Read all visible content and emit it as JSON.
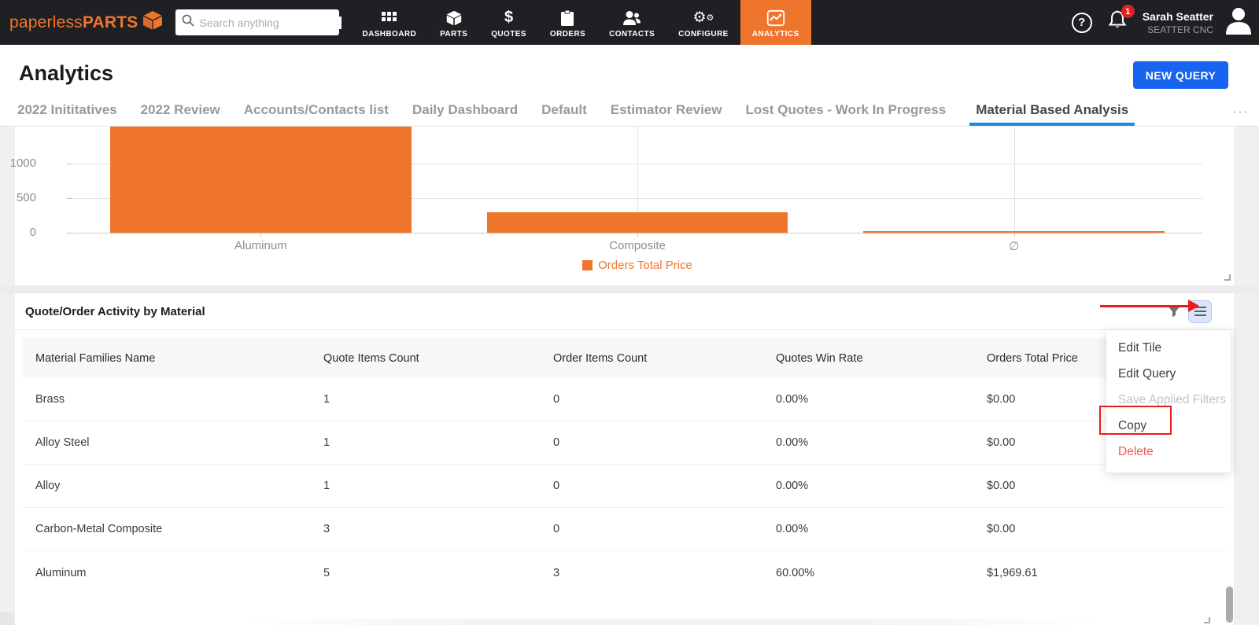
{
  "colors": {
    "orange": "#F0752C",
    "blue": "#1664F0",
    "tab_underline_blue": "#1E88E5",
    "annotation_red": "#E81C1C",
    "danger_red": "#F25A4F",
    "nav_background": "#1F2023"
  },
  "topnav": {
    "logo": {
      "text_regular": "paperless",
      "text_bold": "PARTS"
    },
    "search": {
      "placeholder": "Search anything"
    },
    "items": [
      {
        "label": "DASHBOARD",
        "icon": "grid-icon",
        "active": false
      },
      {
        "label": "PARTS",
        "icon": "cube-icon",
        "active": false
      },
      {
        "label": "QUOTES",
        "icon": "dollar-icon",
        "active": false
      },
      {
        "label": "ORDERS",
        "icon": "clipboard-icon",
        "active": false
      },
      {
        "label": "CONTACTS",
        "icon": "people-icon",
        "active": false
      },
      {
        "label": "CONFIGURE",
        "icon": "gears-icon",
        "active": false
      },
      {
        "label": "ANALYTICS",
        "icon": "chart-icon",
        "active": true
      }
    ],
    "notification_count": "1",
    "user": {
      "name": "Sarah Seatter",
      "company": "SEATTER CNC"
    }
  },
  "header": {
    "title": "Analytics",
    "new_query_label": "NEW QUERY"
  },
  "tabs": {
    "items": [
      "2022 Inititatives",
      "2022 Review",
      "Accounts/Contacts list",
      "Daily Dashboard",
      "Default",
      "Estimator Review",
      "Lost Quotes - Work In Progress",
      "Material Based Analysis"
    ],
    "active_index": 7,
    "overflow": "···"
  },
  "chart_data": {
    "type": "bar",
    "title": "",
    "xlabel": "",
    "ylabel": "",
    "categories": [
      "Aluminum",
      "Composite",
      "∅"
    ],
    "values": [
      1969.61,
      290,
      3
    ],
    "series_name": "Orders Total Price",
    "legend": [
      "Orders Total Price"
    ],
    "legend_position": "bottom-center",
    "yticks": [
      0,
      500,
      1000
    ],
    "ylim_visible": [
      0,
      1540
    ],
    "grid": true,
    "note": "top of Aluminum bar clipped out of view"
  },
  "table_card": {
    "title": "Quote/Order Activity by Material",
    "columns": [
      "Material Families Name",
      "Quote Items Count",
      "Order Items Count",
      "Quotes Win Rate",
      "Orders Total Price"
    ],
    "rows": [
      {
        "name": "Brass",
        "quote_items_count": "1",
        "order_items_count": "0",
        "quotes_win_rate": "0.00%",
        "orders_total_price": "$0.00"
      },
      {
        "name": "Alloy Steel",
        "quote_items_count": "1",
        "order_items_count": "0",
        "quotes_win_rate": "0.00%",
        "orders_total_price": "$0.00"
      },
      {
        "name": "Alloy",
        "quote_items_count": "1",
        "order_items_count": "0",
        "quotes_win_rate": "0.00%",
        "orders_total_price": "$0.00"
      },
      {
        "name": "Carbon-Metal Composite",
        "quote_items_count": "3",
        "order_items_count": "0",
        "quotes_win_rate": "0.00%",
        "orders_total_price": "$0.00"
      },
      {
        "name": "Aluminum",
        "quote_items_count": "5",
        "order_items_count": "3",
        "quotes_win_rate": "60.00%",
        "orders_total_price": "$1,969.61"
      }
    ]
  },
  "menu": {
    "items": [
      {
        "label": "Edit Tile",
        "state": "normal"
      },
      {
        "label": "Edit Query",
        "state": "normal"
      },
      {
        "label": "Save Applied Filters",
        "state": "disabled"
      },
      {
        "label": "Copy",
        "state": "highlighted"
      },
      {
        "label": "Delete",
        "state": "danger"
      }
    ]
  }
}
